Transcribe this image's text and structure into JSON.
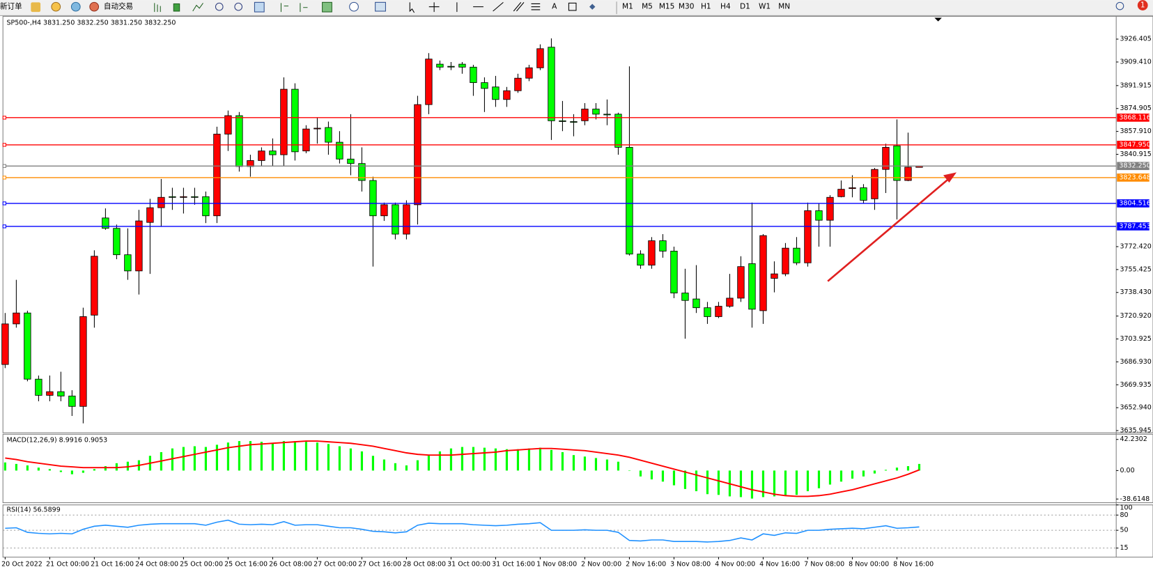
{
  "toolbar": {
    "new_order": "新订单",
    "auto_trading": "自动交易",
    "text_tool": "A",
    "timeframes": [
      "M1",
      "M5",
      "M15",
      "M30",
      "H1",
      "H4",
      "D1",
      "W1",
      "MN"
    ],
    "alerts": 1
  },
  "chart_data": [
    {
      "type": "candlestick",
      "title": "SP500-,H4  3831.250 3832.250 3831.250 3832.250",
      "up_color": "#ff0000",
      "down_color": "#00ff00",
      "grid": false,
      "categories": [
        "20 Oct 2022",
        null,
        null,
        null,
        "21 Oct 00:00",
        null,
        null,
        null,
        "21 Oct 16:00",
        null,
        null,
        null,
        "24 Oct 08:00",
        null,
        null,
        null,
        "25 Oct 00:00",
        null,
        null,
        null,
        "25 Oct 16:00",
        null,
        null,
        null,
        "26 Oct 08:00",
        null,
        null,
        null,
        "27 Oct 00:00",
        null,
        null,
        null,
        "27 Oct 16:00",
        null,
        null,
        null,
        "28 Oct 08:00",
        null,
        null,
        null,
        "31 Oct 00:00",
        null,
        null,
        null,
        "31 Oct 16:00",
        null,
        null,
        null,
        "1 Nov 08:00",
        null,
        null,
        null,
        "2 Nov 00:00",
        null,
        null,
        null,
        "2 Nov 16:00",
        null,
        null,
        null,
        "3 Nov 08:00",
        null,
        null,
        null,
        "4 Nov 00:00",
        null,
        null,
        null,
        "4 Nov 16:00",
        null,
        null,
        null,
        "7 Nov 08:00",
        null,
        null,
        null,
        "8 Nov 00:00",
        null,
        null,
        null,
        "8 Nov 16:00",
        null,
        null
      ],
      "open": [
        3685.0,
        3715.1,
        3723.2,
        3674.1,
        3662.1,
        3664.8,
        3661.6,
        3653.9,
        3721.6,
        3793.7,
        3786.0,
        3766.4,
        3754.4,
        3790.4,
        3801.3,
        3809.5,
        3809.0,
        3809.5,
        3809.5,
        3795.3,
        3855.9,
        3869.6,
        3831.9,
        3836.3,
        3843.4,
        3840.6,
        3889.2,
        3843.4,
        3860.0,
        3860.8,
        3849.9,
        3837.4,
        3834.1,
        3821.5,
        3795.3,
        3803.5,
        3781.7,
        3803.5,
        3877.8,
        3907.8,
        3906.2,
        3907.8,
        3905.6,
        3894.1,
        3890.9,
        3881.6,
        3888.1,
        3897.4,
        3905.1,
        3920.4,
        3865.8,
        3865.2,
        3865.8,
        3874.5,
        3870.7,
        3870.7,
        3846.1,
        3766.9,
        3758.7,
        3776.8,
        3769.1,
        3738.0,
        3733.6,
        3727.1,
        3720.5,
        3728.2,
        3734.2,
        3759.8,
        3724.9,
        3748.9,
        3752.2,
        3771.3,
        3760.4,
        3799.1,
        3792.0,
        3809.5,
        3815.5,
        3816.1,
        3807.9,
        3829.7,
        3847.2,
        3821.5,
        3831.25
      ],
      "high": [
        3723.2,
        3747.8,
        3724.9,
        3676.8,
        3676.8,
        3679.6,
        3665.9,
        3727.1,
        3769.7,
        3800.8,
        3788.8,
        3786.0,
        3799.7,
        3807.9,
        3822.6,
        3816.1,
        3816.1,
        3816.1,
        3813.3,
        3861.4,
        3873.4,
        3872.3,
        3840.6,
        3846.1,
        3852.7,
        3898.0,
        3893.6,
        3862.5,
        3867.9,
        3865.2,
        3858.1,
        3870.7,
        3846.1,
        3824.3,
        3805.1,
        3805.1,
        3806.8,
        3884.3,
        3916.0,
        3910.5,
        3909.4,
        3909.4,
        3907.3,
        3898.0,
        3899.1,
        3890.9,
        3900.7,
        3907.3,
        3922.5,
        3926.9,
        3880.5,
        3870.7,
        3878.9,
        3878.9,
        3881.6,
        3871.8,
        3906.2,
        3769.7,
        3779.5,
        3781.7,
        3772.4,
        3756.0,
        3758.7,
        3731.4,
        3731.4,
        3752.2,
        3765.3,
        3805.1,
        3781.7,
        3761.5,
        3775.1,
        3779.5,
        3805.1,
        3804.6,
        3810.6,
        3821.5,
        3825.4,
        3818.8,
        3830.8,
        3848.8,
        3866.8,
        3857.0,
        3832.25
      ],
      "low": [
        3682.3,
        3712.3,
        3672.5,
        3657.7,
        3657.7,
        3657.7,
        3646.8,
        3641.3,
        3712.3,
        3784.9,
        3763.1,
        3747.8,
        3736.9,
        3752.2,
        3787.1,
        3799.7,
        3797.0,
        3803.5,
        3789.9,
        3789.9,
        3843.4,
        3828.1,
        3824.3,
        3832.4,
        3832.4,
        3832.4,
        3836.3,
        3841.7,
        3848.8,
        3840.6,
        3834.1,
        3825.4,
        3813.3,
        3757.6,
        3791.5,
        3777.8,
        3777.8,
        3788.8,
        3870.7,
        3903.4,
        3903.4,
        3900.7,
        3884.3,
        3872.3,
        3876.1,
        3876.1,
        3886.5,
        3895.2,
        3903.4,
        3851.6,
        3858.1,
        3854.3,
        3862.5,
        3866.8,
        3862.5,
        3840.6,
        3765.8,
        3756.0,
        3756.0,
        3764.2,
        3734.2,
        3704.1,
        3723.2,
        3715.1,
        3719.4,
        3727.1,
        3731.4,
        3712.3,
        3715.1,
        3738.5,
        3750.5,
        3758.7,
        3757.6,
        3772.4,
        3772.4,
        3809.0,
        3809.0,
        3804.6,
        3799.7,
        3812.2,
        3792.6,
        3821.0,
        3831.25
      ],
      "close": [
        3715.1,
        3723.2,
        3674.1,
        3662.1,
        3664.8,
        3661.6,
        3653.9,
        3720.5,
        3765.3,
        3786.0,
        3766.4,
        3754.4,
        3791.5,
        3801.3,
        3809.0,
        3809.0,
        3809.5,
        3809.0,
        3795.3,
        3855.9,
        3869.6,
        3831.9,
        3836.3,
        3843.4,
        3840.6,
        3889.2,
        3842.8,
        3859.7,
        3860.3,
        3849.9,
        3837.4,
        3834.1,
        3821.5,
        3795.3,
        3803.5,
        3781.7,
        3803.5,
        3877.8,
        3911.6,
        3905.6,
        3905.9,
        3905.6,
        3894.1,
        3889.8,
        3881.6,
        3888.1,
        3897.4,
        3905.1,
        3919.3,
        3865.8,
        3865.5,
        3864.9,
        3874.5,
        3870.7,
        3870.4,
        3846.1,
        3766.9,
        3758.7,
        3776.8,
        3769.1,
        3738.0,
        3732.5,
        3727.1,
        3720.5,
        3728.2,
        3734.2,
        3757.6,
        3726.0,
        3780.6,
        3752.2,
        3771.3,
        3760.4,
        3799.1,
        3792.0,
        3809.0,
        3815.0,
        3816.1,
        3806.8,
        3829.7,
        3846.1,
        3821.5,
        3831.4,
        3832.25
      ],
      "ylim": [
        3634.3,
        3943.3
      ],
      "yticks": [
        3926.405,
        {
          "value": 3909.41,
          "label": "3909.410"
        },
        3891.915,
        3874.905,
        {
          "value": 3857.91,
          "label": "3857.910"
        },
        3840.915,
        {
          "value": 3772.42,
          "label": "3772.420"
        },
        3755.425,
        {
          "value": 3738.43,
          "label": "3738.430"
        },
        {
          "value": 3720.92,
          "label": "3720.920"
        },
        3703.925,
        {
          "value": 3686.93,
          "label": "3686.930"
        },
        3669.935,
        {
          "value": 3652.94,
          "label": "3652.940"
        },
        3635.945
      ],
      "levels": [
        {
          "value": 3868.116,
          "color": "#ff0000"
        },
        {
          "value": 3847.95,
          "label": "3847.950",
          "color": "#ff0000"
        },
        {
          "value": 3832.25,
          "label": "3832.250",
          "color": "#808080"
        },
        {
          "value": 3823.648,
          "color": "#ff8c00"
        },
        {
          "value": 3804.516,
          "color": "#0000ff"
        },
        {
          "value": 3787.453,
          "color": "#0000ff"
        }
      ]
    },
    {
      "type": "macd",
      "title": "MACD(12,26,9) 8.9916 0.9053",
      "series": [
        {
          "style": "bar",
          "color": "#00ff00",
          "values": [
            11,
            9,
            7,
            4,
            2,
            -2,
            -5,
            -3,
            2,
            6,
            10,
            12,
            14,
            20,
            25,
            30,
            32,
            33,
            32,
            35,
            38,
            40,
            40,
            39,
            37,
            40,
            40,
            39,
            38,
            36,
            33,
            30,
            26,
            20,
            15,
            10,
            7,
            14,
            21,
            26,
            30,
            32,
            32,
            31,
            30,
            29,
            29,
            30,
            31,
            28,
            25,
            21,
            19,
            17,
            15,
            12,
            0,
            -8,
            -12,
            -15,
            -20,
            -25,
            -28,
            -32,
            -33,
            -35,
            -36,
            -38,
            -36,
            -35,
            -34,
            -33,
            -28,
            -24,
            -19,
            -15,
            -11,
            -8,
            -4,
            1,
            4,
            6,
            8.9916
          ]
        },
        {
          "style": "line",
          "color": "#ff0000",
          "values": [
            17,
            15,
            12,
            10,
            8,
            6,
            5,
            4,
            4,
            4,
            4,
            5,
            7,
            10,
            13,
            16,
            19,
            22,
            25,
            28,
            31,
            33,
            35,
            36,
            37,
            38,
            39,
            40,
            40,
            39,
            38,
            37,
            35,
            33,
            30,
            27,
            24,
            22,
            21,
            21,
            21,
            22,
            23,
            24,
            25,
            27,
            28,
            29,
            30,
            30,
            29,
            28,
            27,
            25,
            23,
            21,
            18,
            14,
            10,
            6,
            2,
            -2,
            -6,
            -10,
            -14,
            -18,
            -22,
            -26,
            -29,
            -32,
            -34,
            -35,
            -35,
            -34,
            -32,
            -29,
            -26,
            -22,
            -18,
            -14,
            -10,
            -5,
            0.9053
          ]
        }
      ],
      "ylim": [
        -43.6,
        49.22
      ],
      "yticks": [
        42.2302,
        {
          "value": 0,
          "label": "0.00"
        },
        -38.6148
      ]
    },
    {
      "type": "line",
      "title": "RSI(14) 56.5899",
      "series": [
        {
          "color": "#1e90ff",
          "values": [
            54,
            55,
            46,
            44,
            43,
            44,
            43,
            52,
            58,
            60,
            58,
            56,
            60,
            62,
            63,
            63,
            63,
            63,
            60,
            66,
            70,
            62,
            61,
            62,
            61,
            67,
            60,
            61,
            61,
            58,
            55,
            55,
            52,
            48,
            47,
            45,
            47,
            60,
            64,
            63,
            63,
            63,
            61,
            60,
            59,
            60,
            62,
            63,
            65,
            50,
            50,
            50,
            51,
            50,
            50,
            46,
            30,
            29,
            31,
            31,
            28,
            28,
            28,
            27,
            28,
            30,
            35,
            31,
            43,
            40,
            45,
            44,
            50,
            50,
            52,
            53,
            54,
            53,
            56,
            59,
            54,
            55,
            56.5899
          ]
        }
      ],
      "ylim": [
        -2.9,
        100
      ],
      "yticks": [
        100,
        80,
        50,
        15
      ]
    }
  ]
}
